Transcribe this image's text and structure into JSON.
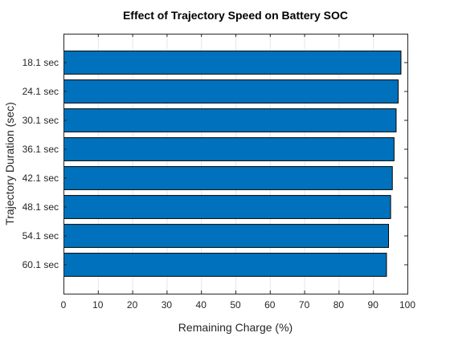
{
  "chart_data": {
    "type": "bar",
    "orientation": "horizontal",
    "title": "Effect of Trajectory Speed on Battery SOC",
    "xlabel": "Remaining Charge (%)",
    "ylabel": "Trajectory Duration (sec)",
    "categories": [
      "18.1 sec",
      "24.1 sec",
      "30.1 sec",
      "36.1 sec",
      "42.1 sec",
      "48.1 sec",
      "54.1 sec",
      "60.1 sec"
    ],
    "values": [
      98.0,
      97.2,
      96.6,
      96.0,
      95.5,
      95.0,
      94.4,
      93.8
    ],
    "xlim": [
      0,
      100
    ],
    "xticks": [
      0,
      10,
      20,
      30,
      40,
      50,
      60,
      70,
      80,
      90,
      100
    ],
    "grid": true,
    "bar_color": "#0072BD",
    "bar_edge_color": "#000000"
  }
}
